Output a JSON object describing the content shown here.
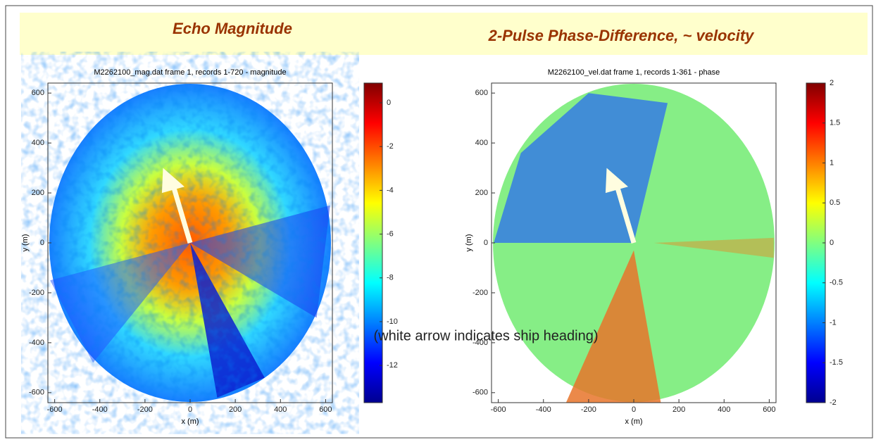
{
  "banner": {
    "left_title": "Echo Magnitude",
    "right_title": "2-Pulse Phase-Difference, ~ velocity"
  },
  "caption": "(white arrow indicates ship heading)",
  "chart_data": [
    {
      "type": "heatmap",
      "title": "M2262100_mag.dat  frame 1, records 1-720 - magnitude",
      "xlabel": "x (m)",
      "ylabel": "y (m)",
      "xlim": [
        -630,
        630
      ],
      "ylim": [
        -640,
        640
      ],
      "xticks": [
        -600,
        -400,
        -200,
        0,
        200,
        400,
        600
      ],
      "yticks": [
        -600,
        -400,
        -200,
        0,
        200,
        400,
        600
      ],
      "clim": [
        -13.7,
        0.9
      ],
      "cticks": [
        -12,
        -10,
        -8,
        -6,
        -4,
        -2,
        0
      ],
      "colormap": "jet"
    },
    {
      "type": "heatmap",
      "title": "M2262100_vel.dat  frame 1, records 1-361 - phase",
      "xlabel": "x (m)",
      "ylabel": "y (m)",
      "xlim": [
        -630,
        630
      ],
      "ylim": [
        -640,
        640
      ],
      "xticks": [
        -600,
        -400,
        -200,
        0,
        200,
        400,
        600
      ],
      "yticks": [
        -600,
        -400,
        -200,
        0,
        200,
        400,
        600
      ],
      "clim": [
        -2,
        2
      ],
      "cticks": [
        -2,
        -1.5,
        -1,
        -0.5,
        0,
        0.5,
        1,
        1.5,
        2
      ],
      "colormap": "jet"
    }
  ]
}
